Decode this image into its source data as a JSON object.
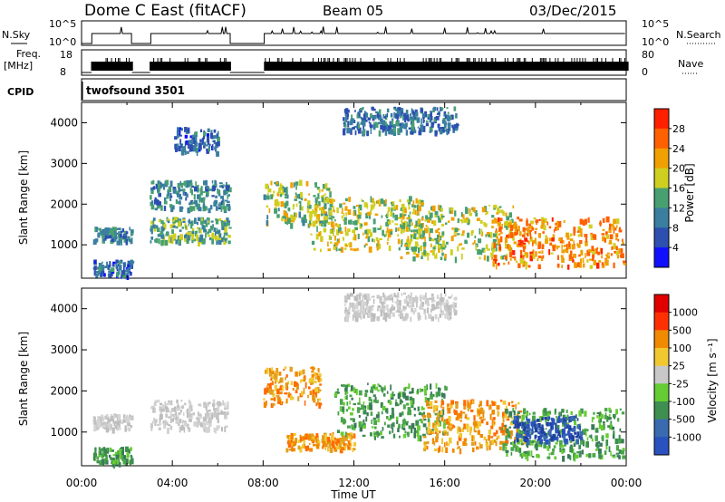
{
  "header": {
    "title": "Dome C East (fitACF)",
    "beam": "Beam 05",
    "date": "03/Dec/2015"
  },
  "top_panels": {
    "nsky_label": "N.Sky",
    "nsky_ticks": [
      "10^5",
      "10^0"
    ],
    "nsearch_label": "N.Search",
    "nsearch_ticks": [
      "10^5",
      "10^0"
    ],
    "freq_label": "Freq.",
    "freq_unit": "[MHz]",
    "freq_ticks": [
      "18",
      "8"
    ],
    "nave_label": "Nave",
    "nave_ticks": [
      "80",
      "0"
    ],
    "cpid_label": "CPID",
    "cpid_value": "twofsound 3501"
  },
  "chart_data": [
    {
      "type": "heatmap",
      "name": "power",
      "ylabel": "Slant Range [km]",
      "yticks": [
        1000,
        2000,
        3000,
        4000
      ],
      "ylim": [
        180,
        4500
      ],
      "xlim": [
        0,
        24
      ],
      "colorbar": {
        "label": "Power [dB]",
        "ticks": [
          "4",
          "8",
          "12",
          "16",
          "20",
          "24",
          "28"
        ],
        "colors": [
          "#1010ff",
          "#2c4fb0",
          "#3a7fa0",
          "#48a070",
          "#cfcf20",
          "#f0a000",
          "#ff6000",
          "#ff2000"
        ]
      },
      "data_gaps_hours": [
        [
          2.2,
          3.0
        ],
        [
          6.5,
          8.0
        ]
      ],
      "bands": [
        {
          "t0": 0.5,
          "t1": 2.2,
          "r0": 1100,
          "r1": 1450,
          "level": 9
        },
        {
          "t0": 0.5,
          "t1": 2.2,
          "r0": 250,
          "r1": 650,
          "level": 6
        },
        {
          "t0": 3.0,
          "t1": 6.5,
          "r0": 1100,
          "r1": 1700,
          "level": 12
        },
        {
          "t0": 3.0,
          "t1": 6.5,
          "r0": 1900,
          "r1": 2600,
          "level": 9
        },
        {
          "t0": 8.0,
          "t1": 11.0,
          "r0": 1500,
          "r1": 2600,
          "level": 14
        },
        {
          "t0": 10.0,
          "t1": 15.0,
          "r0": 900,
          "r1": 2200,
          "level": 16
        },
        {
          "t0": 14.0,
          "t1": 19.0,
          "r0": 700,
          "r1": 2000,
          "level": 15
        },
        {
          "t0": 18.0,
          "t1": 24.0,
          "r0": 500,
          "r1": 1700,
          "level": 22
        },
        {
          "t0": 11.5,
          "t1": 16.5,
          "r0": 3800,
          "r1": 4400,
          "level": 7
        },
        {
          "t0": 4.0,
          "t1": 6.0,
          "r0": 3300,
          "r1": 3900,
          "level": 6
        }
      ]
    },
    {
      "type": "heatmap",
      "name": "velocity",
      "ylabel": "Slant Range [km]",
      "yticks": [
        1000,
        2000,
        3000,
        4000
      ],
      "ylim": [
        180,
        4500
      ],
      "xlim": [
        0,
        24
      ],
      "xticks": [
        "00:00",
        "04:00",
        "08:00",
        "12:00",
        "16:00",
        "20:00",
        "00:00"
      ],
      "xlabel": "Time UT",
      "colorbar": {
        "label": "Velocity [m s⁻¹]",
        "ticks": [
          "1000",
          "500",
          "100",
          "25",
          "-25",
          "-100",
          "-500",
          "-1000"
        ],
        "colors": [
          "#2a52be",
          "#3a6ab0",
          "#3e8f50",
          "#66cc33",
          "#c8c8c8",
          "#f2c830",
          "#f08a00",
          "#ff3000",
          "#e00000"
        ]
      },
      "data_gaps_hours": [
        [
          2.2,
          3.0
        ],
        [
          6.5,
          8.0
        ]
      ],
      "bands": [
        {
          "t0": 0.5,
          "t1": 2.2,
          "r0": 1100,
          "r1": 1450,
          "vel": "gray"
        },
        {
          "t0": 0.5,
          "t1": 2.2,
          "r0": 250,
          "r1": 650,
          "vel": "green"
        },
        {
          "t0": 3.0,
          "t1": 6.5,
          "r0": 1100,
          "r1": 1800,
          "vel": "gray"
        },
        {
          "t0": 8.0,
          "t1": 10.5,
          "r0": 1700,
          "r1": 2600,
          "vel": "orange"
        },
        {
          "t0": 9.0,
          "t1": 12.0,
          "r0": 600,
          "r1": 1000,
          "vel": "orange"
        },
        {
          "t0": 11.0,
          "t1": 16.0,
          "r0": 900,
          "r1": 2200,
          "vel": "green"
        },
        {
          "t0": 15.0,
          "t1": 19.5,
          "r0": 600,
          "r1": 1800,
          "vel": "orange"
        },
        {
          "t0": 18.5,
          "t1": 24.0,
          "r0": 400,
          "r1": 1600,
          "vel": "green"
        },
        {
          "t0": 19.0,
          "t1": 22.0,
          "r0": 800,
          "r1": 1400,
          "vel": "blue"
        },
        {
          "t0": 11.5,
          "t1": 16.5,
          "r0": 3800,
          "r1": 4400,
          "vel": "gray"
        }
      ]
    }
  ]
}
